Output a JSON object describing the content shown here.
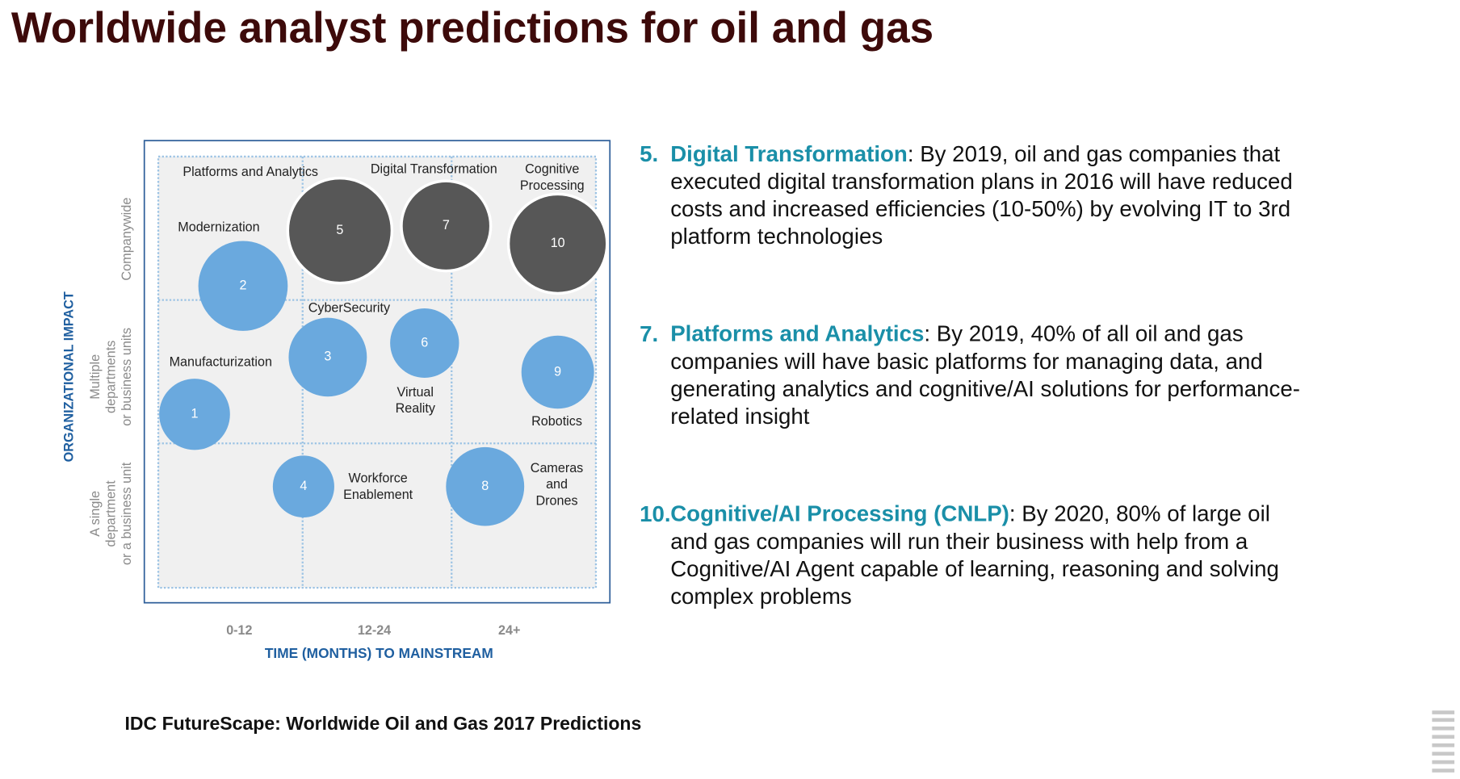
{
  "title": "Worldwide analyst predictions for oil and gas",
  "diagram": {
    "y_axis_title": "ORGANIZATIONAL IMPACT",
    "x_axis_title": "TIME (MONTHS) TO MAINSTREAM",
    "columns": [
      "0-12",
      "12-24",
      "24+"
    ],
    "rows": [
      [
        "Companywide"
      ],
      [
        "Multiple",
        "departments",
        "or business units"
      ],
      [
        "A single",
        "department",
        "or a business unit"
      ]
    ],
    "bubbles": [
      "1",
      "2",
      "3",
      "4",
      "5",
      "6",
      "7",
      "8",
      "9",
      "10"
    ],
    "labels": [
      [
        "Platforms and Analytics"
      ],
      [
        "Digital Transformation"
      ],
      [
        "Cognitive",
        "Processing"
      ],
      [
        "Modernization"
      ],
      [
        "CyberSecurity"
      ],
      [
        "Manufacturization"
      ],
      [
        "Virtual",
        "Reality"
      ],
      [
        "Robotics"
      ],
      [
        "Workforce",
        "Enablement"
      ],
      [
        "Cameras",
        "and",
        "Drones"
      ]
    ]
  },
  "predictions": [
    {
      "number": "5.",
      "title": "Digital Transformation",
      "lines": [
        ": By 2019, oil and gas companies that",
        "executed digital transformation plans in 2016 will have reduced",
        "costs and increased efficiencies (10-50%) by evolving IT to 3rd",
        "platform technologies"
      ]
    },
    {
      "number": "7.",
      "title": "Platforms and Analytics",
      "lines": [
        ": By 2019, 40% of all oil and gas",
        "companies will have basic platforms for managing data, and",
        "generating analytics and cognitive/AI solutions for performance-",
        "related insight"
      ]
    },
    {
      "number": "10.",
      "title": "Cognitive/AI Processing (CNLP)",
      "lines": [
        ": By 2020, 80% of large oil",
        "and gas companies will run their business with help from a",
        "Cognitive/AI Agent capable of learning, reasoning and solving",
        "complex problems"
      ]
    }
  ],
  "source": "IDC FutureScape: Worldwide Oil and Gas 2017 Predictions"
}
